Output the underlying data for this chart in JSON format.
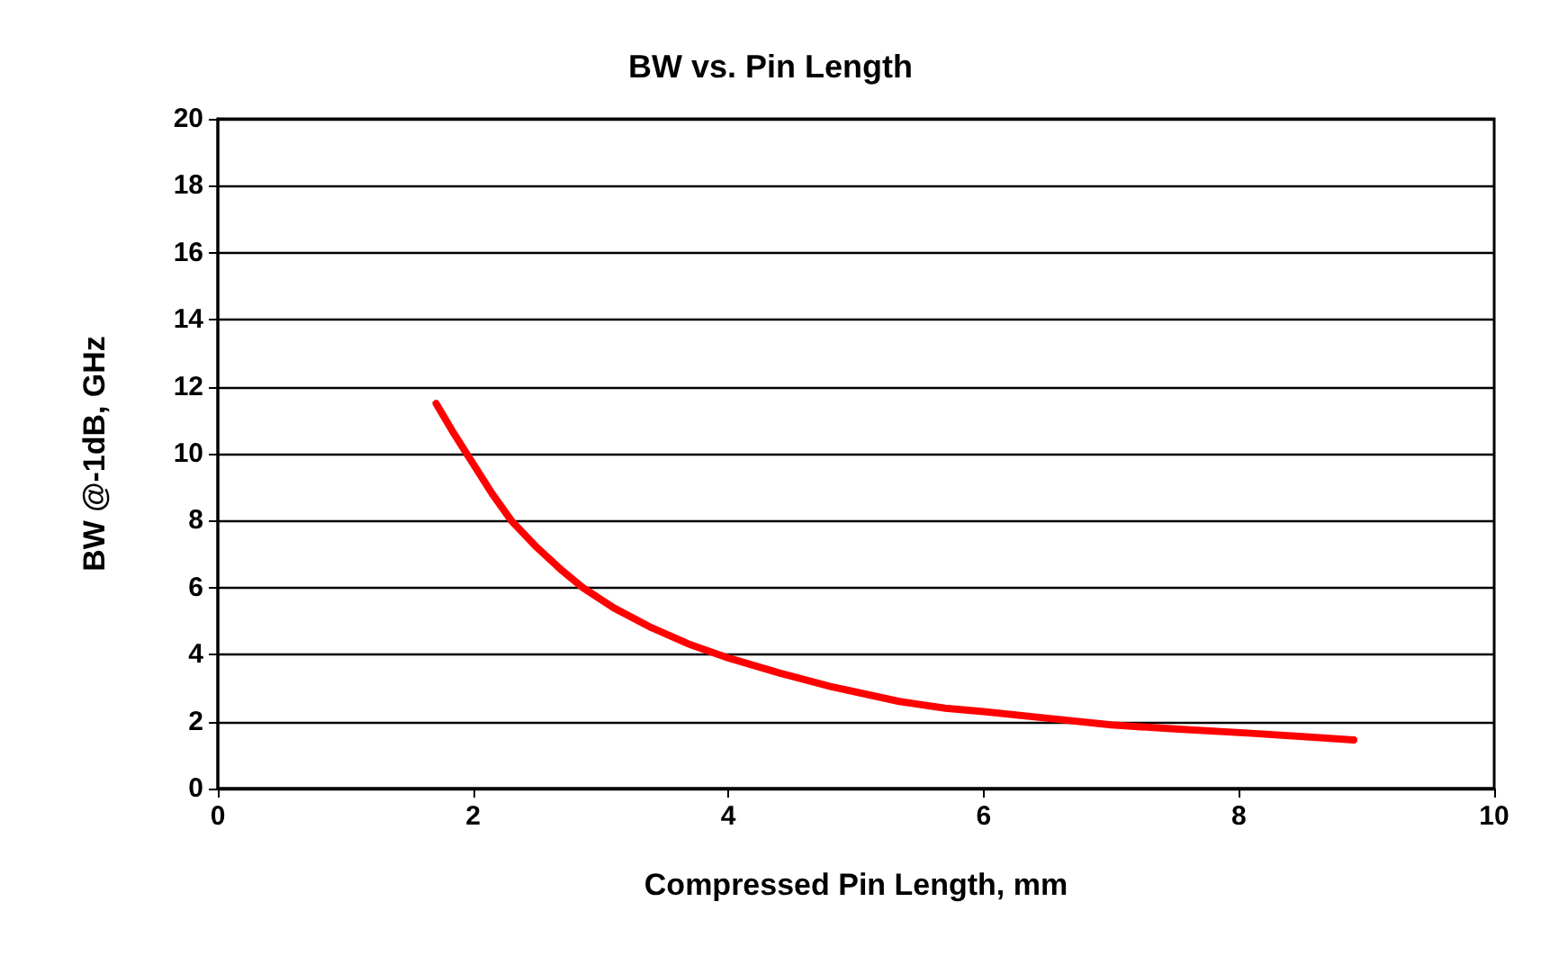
{
  "chart_data": {
    "type": "line",
    "title": "BW vs. Pin Length",
    "xlabel": "Compressed Pin Length, mm",
    "ylabel": "BW @-1dB, GHz",
    "series": [
      {
        "color": "#ff0000",
        "x": [
          1.71,
          1.85,
          2.0,
          2.15,
          2.3,
          2.5,
          2.7,
          2.86,
          3.1,
          3.4,
          3.7,
          4.0,
          4.4,
          4.8,
          5.34,
          5.7,
          6.0,
          6.5,
          7.0,
          7.5,
          8.1,
          8.5,
          8.9
        ],
        "values": [
          11.5,
          10.6,
          9.7,
          8.8,
          8.0,
          7.2,
          6.5,
          6.0,
          5.4,
          4.8,
          4.3,
          3.9,
          3.45,
          3.05,
          2.6,
          2.4,
          2.3,
          2.1,
          1.9,
          1.78,
          1.65,
          1.55,
          1.45
        ]
      }
    ],
    "xlim": [
      0,
      10
    ],
    "xticks": [
      0,
      2,
      4,
      6,
      8,
      10
    ],
    "ylim": [
      0,
      20
    ],
    "yticks": [
      0,
      2,
      4,
      6,
      8,
      10,
      12,
      14,
      16,
      18,
      20
    ],
    "grid": "y",
    "marker": "none",
    "line_style": "solid"
  }
}
